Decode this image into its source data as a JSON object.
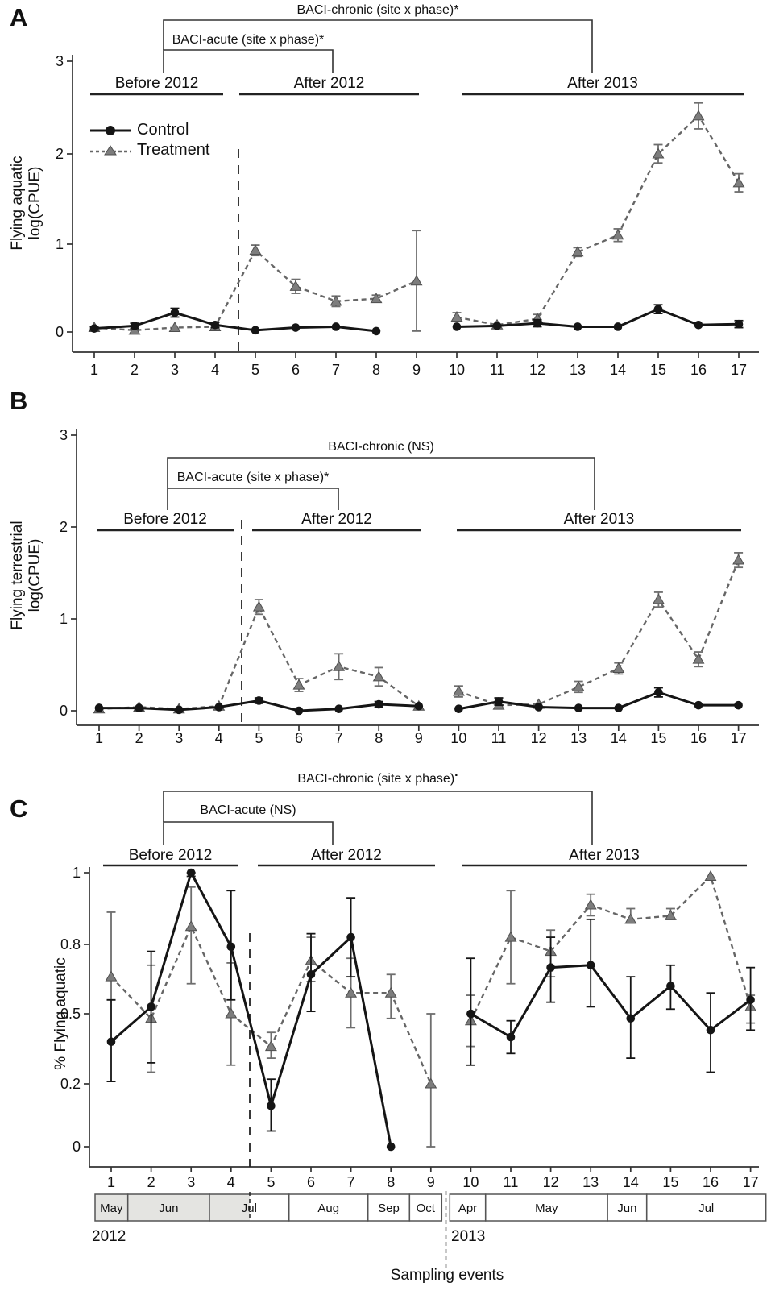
{
  "figure": {
    "panel_letters": [
      "A",
      "B",
      "C"
    ],
    "legend": {
      "control": "Control",
      "treatment": "Treatment"
    },
    "years": [
      "2012",
      "2013"
    ],
    "xlabel": "Sampling events",
    "colors": {
      "control": "#151515",
      "treatment_marker": "#7d7d7d",
      "treatment_line": "#666666",
      "shaded_month": "#e4e4e1",
      "axis": "#333333"
    }
  },
  "timeline": {
    "years": [
      {
        "label": "2012",
        "months": [
          {
            "label": "May",
            "shaded": true
          },
          {
            "label": "Jun",
            "shaded": true
          },
          {
            "label": "Jul",
            "shaded": "partial"
          },
          {
            "label": "Aug",
            "shaded": false
          },
          {
            "label": "Sep",
            "shaded": false
          },
          {
            "label": "Oct",
            "shaded": false
          }
        ]
      },
      {
        "label": "2013",
        "months": [
          {
            "label": "Apr",
            "shaded": false
          },
          {
            "label": "May",
            "shaded": false
          },
          {
            "label": "Jun",
            "shaded": false
          },
          {
            "label": "Jul",
            "shaded": false
          }
        ]
      }
    ],
    "xlabel": "Sampling events"
  },
  "chart_data": [
    {
      "panel": "A",
      "type": "line",
      "title": "",
      "xlabel": "",
      "ylabel": "Flying aquatic log(CPUE)",
      "ylabel_lines": [
        "Flying aquatic",
        "log(CPUE)"
      ],
      "x": [
        1,
        2,
        3,
        4,
        5,
        6,
        7,
        8,
        9,
        10,
        11,
        12,
        13,
        14,
        15,
        16,
        17
      ],
      "y_ticks": [
        0,
        1,
        2,
        3
      ],
      "y_tick_labels": [
        "0",
        "1",
        "2",
        "3"
      ],
      "ylim": [
        0,
        3
      ],
      "y_scale": "linear",
      "grid": false,
      "legend_position": "upper-left-inside",
      "annotations": {
        "chronic": "BACI-chronic (site x phase)*",
        "chronic_sup": "",
        "acute": "BACI-acute (site x phase)*"
      },
      "phases": [
        "Before 2012",
        "After 2012",
        "After 2013"
      ],
      "impact_dash_between_events": [
        4,
        5
      ],
      "gap_after_event": 9,
      "series": [
        {
          "name": "Control",
          "style": "solid-black-circle",
          "values": [
            0.04,
            0.07,
            0.22,
            0.08,
            0.02,
            0.05,
            0.06,
            0.01,
            null,
            0.06,
            0.07,
            0.1,
            0.06,
            0.06,
            0.26,
            0.08,
            0.09
          ],
          "err_lo": [
            0.02,
            0.04,
            0.17,
            0.05,
            null,
            null,
            null,
            null,
            null,
            null,
            null,
            0.06,
            null,
            null,
            0.21,
            null,
            0.05
          ],
          "err_hi": [
            0.06,
            0.1,
            0.27,
            0.11,
            null,
            null,
            null,
            null,
            null,
            null,
            null,
            0.14,
            null,
            null,
            0.31,
            null,
            0.13
          ]
        },
        {
          "name": "Treatment",
          "style": "dashed-gray-triangle",
          "values": [
            0.05,
            0.02,
            0.05,
            0.06,
            0.93,
            0.52,
            0.35,
            0.38,
            0.58,
            0.17,
            0.08,
            0.15,
            0.91,
            1.1,
            2.0,
            2.41,
            1.68
          ],
          "err_lo": [
            null,
            null,
            null,
            null,
            0.87,
            0.44,
            0.29,
            0.34,
            0.01,
            0.12,
            null,
            0.1,
            0.86,
            1.03,
            1.9,
            2.27,
            1.58
          ],
          "err_hi": [
            null,
            null,
            null,
            null,
            0.99,
            0.6,
            0.41,
            0.42,
            1.15,
            0.22,
            null,
            0.2,
            0.96,
            1.17,
            2.1,
            2.55,
            1.78
          ]
        }
      ]
    },
    {
      "panel": "B",
      "type": "line",
      "title": "",
      "xlabel": "",
      "ylabel": "Flying terrestrial log(CPUE)",
      "ylabel_lines": [
        "Flying terrestrial",
        "log(CPUE)"
      ],
      "x": [
        1,
        2,
        3,
        4,
        5,
        6,
        7,
        8,
        9,
        10,
        11,
        12,
        13,
        14,
        15,
        16,
        17
      ],
      "y_ticks": [
        0,
        1,
        2,
        3
      ],
      "y_tick_labels": [
        "0",
        "1",
        "2",
        "3"
      ],
      "ylim": [
        0,
        3
      ],
      "y_scale": "linear",
      "grid": false,
      "annotations": {
        "chronic": "BACI-chronic (NS)",
        "chronic_sup": "",
        "acute": "BACI-acute (site x phase)*"
      },
      "phases": [
        "Before 2012",
        "After 2012",
        "After 2013"
      ],
      "impact_dash_between_events": [
        4,
        5
      ],
      "gap_after_event": 9,
      "series": [
        {
          "name": "Control",
          "style": "solid-black-circle",
          "values": [
            0.03,
            0.03,
            0.01,
            0.04,
            0.11,
            0.0,
            0.02,
            0.07,
            0.05,
            0.02,
            0.1,
            0.04,
            0.03,
            0.03,
            0.2,
            0.06,
            0.06
          ],
          "err_lo": [
            null,
            null,
            null,
            null,
            0.08,
            null,
            null,
            0.04,
            null,
            null,
            0.06,
            null,
            null,
            null,
            0.15,
            null,
            null
          ],
          "err_hi": [
            null,
            null,
            null,
            null,
            0.14,
            null,
            null,
            0.1,
            null,
            null,
            0.14,
            null,
            null,
            null,
            0.25,
            null,
            null
          ]
        },
        {
          "name": "Treatment",
          "style": "dashed-gray-triangle",
          "values": [
            0.02,
            0.04,
            0.02,
            0.05,
            1.13,
            0.28,
            0.48,
            0.37,
            0.05,
            0.21,
            0.06,
            0.07,
            0.26,
            0.46,
            1.21,
            0.56,
            1.64
          ],
          "err_lo": [
            null,
            null,
            null,
            null,
            1.05,
            0.21,
            0.34,
            0.27,
            null,
            0.15,
            null,
            null,
            0.2,
            0.4,
            1.13,
            0.48,
            1.56
          ],
          "err_hi": [
            null,
            null,
            null,
            null,
            1.21,
            0.35,
            0.62,
            0.47,
            null,
            0.27,
            null,
            null,
            0.32,
            0.52,
            1.29,
            0.64,
            1.72
          ]
        }
      ]
    },
    {
      "panel": "C",
      "type": "line",
      "title": "",
      "xlabel": "Sampling events",
      "ylabel": "% Flying aquatic",
      "ylabel_lines": [
        "% Flying aquatic"
      ],
      "x": [
        1,
        2,
        3,
        4,
        5,
        6,
        7,
        8,
        9,
        10,
        11,
        12,
        13,
        14,
        15,
        16,
        17
      ],
      "y_ticks": [
        0,
        0.2,
        0.5,
        0.8,
        1
      ],
      "y_tick_labels": [
        "0",
        "0.2",
        "0.5",
        "0.8",
        "1"
      ],
      "ylim": [
        0,
        1
      ],
      "y_scale": "nonlinear-evenly-spaced-ticks",
      "grid": false,
      "annotations": {
        "chronic": "BACI-chronic (site x phase)",
        "chronic_sup": ".",
        "acute": "BACI-acute (NS)"
      },
      "phases": [
        "Before 2012",
        "After 2012",
        "After 2013"
      ],
      "impact_dash_between_events": [
        4,
        5
      ],
      "gap_after_event": 9,
      "series": [
        {
          "name": "Control",
          "style": "solid-black-circle",
          "values": [
            0.38,
            0.53,
            1.0,
            0.79,
            0.13,
            0.67,
            0.82,
            0.0,
            null,
            0.5,
            0.4,
            0.7,
            0.71,
            0.48,
            0.62,
            0.43,
            0.56
          ],
          "err_lo": [
            0.21,
            0.29,
            0.99,
            0.56,
            0.05,
            0.51,
            0.66,
            null,
            null,
            0.28,
            0.33,
            0.55,
            0.53,
            0.31,
            0.52,
            0.25,
            0.43
          ],
          "err_hi": [
            0.56,
            0.77,
            1.0,
            0.95,
            0.22,
            0.83,
            0.93,
            null,
            null,
            0.74,
            0.47,
            0.82,
            0.87,
            0.66,
            0.71,
            0.59,
            0.7
          ]
        },
        {
          "name": "Treatment",
          "style": "dashed-gray-triangle",
          "values": [
            0.66,
            0.48,
            0.85,
            0.5,
            0.36,
            0.73,
            0.59,
            0.59,
            0.2,
            0.47,
            0.82,
            0.77,
            0.91,
            0.87,
            0.88,
            0.99,
            0.53
          ],
          "err_lo": [
            0.56,
            0.25,
            0.63,
            0.28,
            0.31,
            0.64,
            0.44,
            0.48,
            0.0,
            0.36,
            0.63,
            0.66,
            0.88,
            0.86,
            0.87,
            null,
            0.46
          ],
          "err_hi": [
            0.89,
            0.71,
            0.96,
            0.72,
            0.42,
            0.82,
            0.74,
            0.67,
            0.5,
            0.58,
            0.95,
            0.84,
            0.94,
            0.9,
            0.9,
            null,
            0.58
          ]
        }
      ]
    }
  ]
}
